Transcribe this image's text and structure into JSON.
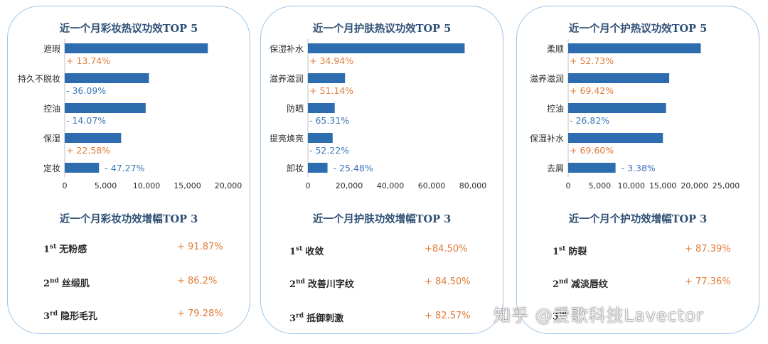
{
  "panels": [
    {
      "title": "近一个月彩妆热议功效TOP 5",
      "bottom_title": "近一个月彩妆功效增幅TOP 3",
      "ranks": [
        {
          "rank": "1",
          "suffix": "st",
          "name": "无粉感",
          "value": "+ 91.87%"
        },
        {
          "rank": "2",
          "suffix": "nd",
          "name": "丝缎肌",
          "value": "+ 86.2%"
        },
        {
          "rank": "3",
          "suffix": "rd",
          "name": "隐形毛孔",
          "value": "+ 79.28%"
        }
      ]
    },
    {
      "title": "近一个月护肤热议功效TOP 5",
      "bottom_title": "近一个月护肤功效增幅TOP 3",
      "ranks": [
        {
          "rank": "1",
          "suffix": "st",
          "name": "收敛",
          "value": "+84.50%"
        },
        {
          "rank": "2",
          "suffix": "nd",
          "name": "改善川字纹",
          "value": "+ 84.50%"
        },
        {
          "rank": "3",
          "suffix": "rd",
          "name": "抵御刺激",
          "value": "+ 82.57%"
        }
      ]
    },
    {
      "title": "近一个月个护热议功效TOP 5",
      "bottom_title": "近一个月个护功效增幅TOP 3",
      "ranks": [
        {
          "rank": "1",
          "suffix": "st",
          "name": "防裂",
          "value": "+ 87.39%"
        },
        {
          "rank": "2",
          "suffix": "nd",
          "name": "减淡唇纹",
          "value": "+ 77.36%"
        },
        {
          "rank": "3",
          "suffix": "rd",
          "name": "",
          "value": ""
        }
      ]
    }
  ],
  "chart_data": [
    {
      "type": "bar",
      "orientation": "horizontal",
      "categories": [
        "遮瑕",
        "持久不脱妆",
        "控油",
        "保湿",
        "定妆"
      ],
      "values": [
        17500,
        10300,
        9900,
        6900,
        4200
      ],
      "changes": [
        "+ 13.74%",
        "- 36.09%",
        "- 14.07%",
        "+ 22.58%",
        "- 47.27%"
      ],
      "xlim": [
        0,
        20000
      ],
      "xticks": [
        "0",
        "5,000",
        "10,000",
        "15,000",
        "20,000"
      ],
      "xtick_values": [
        0,
        5000,
        10000,
        15000,
        20000
      ],
      "color": "#2e6cb0"
    },
    {
      "type": "bar",
      "orientation": "horizontal",
      "categories": [
        "保湿补水",
        "滋养滋润",
        "防晒",
        "提亮焕亮",
        "卸妆"
      ],
      "values": [
        76000,
        18000,
        13000,
        12000,
        9500
      ],
      "changes": [
        "+ 34.94%",
        "+ 51.14%",
        "- 65.31%",
        "- 52.22%",
        "- 25.48%"
      ],
      "xlim": [
        0,
        80000
      ],
      "xticks": [
        "0",
        "20,000",
        "40,000",
        "60,000",
        "80,000"
      ],
      "xtick_values": [
        0,
        20000,
        40000,
        60000,
        80000
      ],
      "color": "#2e6cb0"
    },
    {
      "type": "bar",
      "orientation": "horizontal",
      "categories": [
        "柔顺",
        "滋养滋润",
        "控油",
        "保湿补水",
        "去屑"
      ],
      "values": [
        21000,
        16000,
        15500,
        15000,
        7500
      ],
      "changes": [
        "+ 52.73%",
        "+ 69.42%",
        "- 26.82%",
        "+ 69.60%",
        "- 3.38%"
      ],
      "xlim": [
        0,
        25000
      ],
      "xticks": [
        "0",
        "5,000",
        "10,000",
        "15,000",
        "20,000",
        "25,000"
      ],
      "xtick_values": [
        0,
        5000,
        10000,
        15000,
        20000,
        25000
      ],
      "color": "#2e6cb0"
    }
  ],
  "watermark": "知乎 @爱歌科技Lavector"
}
